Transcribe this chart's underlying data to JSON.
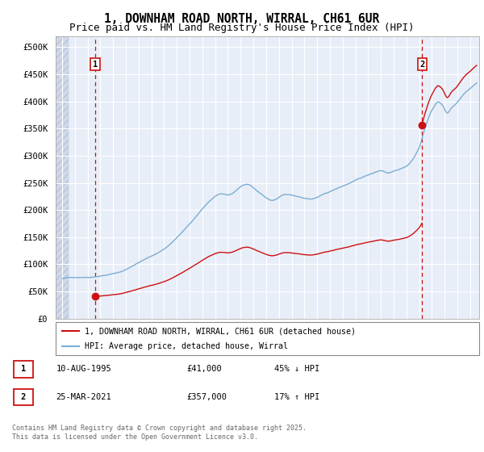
{
  "title": "1, DOWNHAM ROAD NORTH, WIRRAL, CH61 6UR",
  "subtitle": "Price paid vs. HM Land Registry's House Price Index (HPI)",
  "ylim": [
    0,
    520000
  ],
  "yticks": [
    0,
    50000,
    100000,
    150000,
    200000,
    250000,
    300000,
    350000,
    400000,
    450000,
    500000
  ],
  "ytick_labels": [
    "£0",
    "£50K",
    "£100K",
    "£150K",
    "£200K",
    "£250K",
    "£300K",
    "£350K",
    "£400K",
    "£450K",
    "£500K"
  ],
  "xlim_start": 1992.5,
  "xlim_end": 2025.7,
  "hpi_color": "#7aadd4",
  "price_color": "#cc1111",
  "bg_color": "#e8eef8",
  "grid_color": "#ffffff",
  "purchase1_x": 1995.608,
  "purchase1_y": 41000,
  "purchase2_x": 2021.23,
  "purchase2_y": 357000,
  "legend_entries": [
    "1, DOWNHAM ROAD NORTH, WIRRAL, CH61 6UR (detached house)",
    "HPI: Average price, detached house, Wirral"
  ],
  "annotation1_label": "1",
  "annotation2_label": "2",
  "table_row1": [
    "1",
    "10-AUG-1995",
    "£41,000",
    "45% ↓ HPI"
  ],
  "table_row2": [
    "2",
    "25-MAR-2021",
    "£357,000",
    "17% ↑ HPI"
  ],
  "footnote": "Contains HM Land Registry data © Crown copyright and database right 2025.\nThis data is licensed under the Open Government Licence v3.0.",
  "title_fontsize": 10.5,
  "subtitle_fontsize": 9
}
